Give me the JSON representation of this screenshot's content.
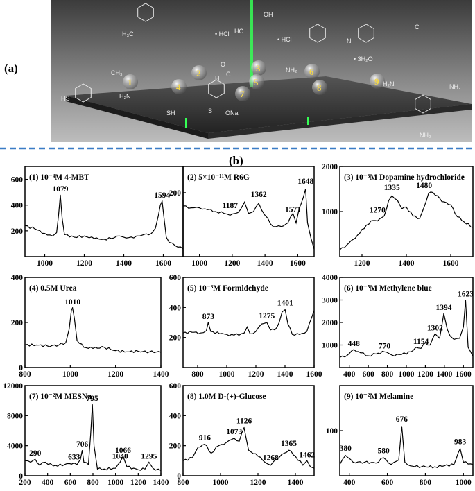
{
  "figure": {
    "label_a": "(a)",
    "label_b": "(b)",
    "divider_color": "#3a7cc6",
    "scene": {
      "molecule_numbers": [
        "1",
        "2",
        "3",
        "4",
        "5",
        "6",
        "7",
        "8",
        "9"
      ],
      "annotations": {
        "hcl_1": "• HCl",
        "hcl_2": "• HCl",
        "cl": "Cl",
        "cl_sup": "−",
        "water": "• 3H₂O",
        "ona": "ONa",
        "sh_1": "HS",
        "sh_2": "SH",
        "s": "S",
        "oh": "OH",
        "ho": "HO",
        "nh2_1": "NH₂",
        "nh2_2": "NH₂",
        "nh2_3": "NH₂",
        "h2n_1": "H₂N",
        "h2n_2": "H₂N",
        "h3c": "H₃C",
        "ch3": "CH₃",
        "o": "O",
        "h": "H",
        "c": "C",
        "n": "N"
      }
    }
  },
  "chart_data": [
    {
      "id": 1,
      "type": "line",
      "title": "(1) 10⁻⁴M 4-MBT",
      "xlim": [
        900,
        1700
      ],
      "ylim": [
        0,
        700
      ],
      "xticks": [
        1000,
        1200,
        1400,
        1600
      ],
      "yticks": [
        200,
        400,
        600
      ],
      "x": [
        900,
        950,
        1000,
        1040,
        1060,
        1070,
        1079,
        1088,
        1100,
        1150,
        1200,
        1250,
        1300,
        1350,
        1380,
        1400,
        1450,
        1480,
        1500,
        1540,
        1560,
        1575,
        1585,
        1594,
        1602,
        1615,
        1630,
        1660,
        1700
      ],
      "y": [
        240,
        215,
        180,
        160,
        185,
        320,
        480,
        300,
        170,
        150,
        160,
        140,
        135,
        145,
        160,
        150,
        145,
        160,
        170,
        180,
        220,
        320,
        400,
        430,
        320,
        150,
        110,
        85,
        60
      ],
      "peaks": [
        {
          "x": 1079,
          "y": 480,
          "label": "1079"
        },
        {
          "x": 1594,
          "y": 430,
          "label": "1594"
        }
      ]
    },
    {
      "id": 2,
      "type": "line",
      "title": "(2) 5×10⁻¹¹M R6G",
      "xlim": [
        900,
        1700
      ],
      "ylim": [
        30,
        270
      ],
      "xticks": [
        1000,
        1200,
        1400,
        1600
      ],
      "yticks": [
        200
      ],
      "x": [
        900,
        950,
        1000,
        1050,
        1100,
        1150,
        1187,
        1220,
        1250,
        1275,
        1300,
        1330,
        1362,
        1400,
        1450,
        1500,
        1540,
        1571,
        1590,
        1610,
        1620,
        1648,
        1660,
        1680,
        1700
      ],
      "y": [
        165,
        160,
        160,
        155,
        150,
        145,
        140,
        145,
        155,
        175,
        145,
        150,
        172,
        140,
        110,
        110,
        120,
        145,
        120,
        160,
        170,
        210,
        120,
        80,
        50
      ],
      "peaks": [
        {
          "x": 1187,
          "y": 150,
          "label": "1187"
        },
        {
          "x": 1362,
          "y": 180,
          "label": "1362"
        },
        {
          "x": 1571,
          "y": 140,
          "label": "1571"
        },
        {
          "x": 1648,
          "y": 215,
          "label": "1648"
        }
      ]
    },
    {
      "id": 3,
      "type": "line",
      "title": "(3) 10⁻³M Dopamine hydrochloride",
      "xlim": [
        1100,
        1700
      ],
      "ylim": [
        0,
        2000
      ],
      "xticks": [
        1200,
        1400,
        1600
      ],
      "yticks": [
        1000,
        2000
      ],
      "x": [
        1100,
        1130,
        1160,
        1190,
        1220,
        1250,
        1270,
        1300,
        1320,
        1335,
        1360,
        1380,
        1400,
        1430,
        1460,
        1480,
        1500,
        1520,
        1540,
        1560,
        1580,
        1600,
        1620,
        1650,
        1700
      ],
      "y": [
        150,
        250,
        380,
        520,
        700,
        800,
        790,
        900,
        1240,
        1350,
        1250,
        1060,
        1100,
        900,
        850,
        1100,
        1400,
        1420,
        1350,
        1220,
        1200,
        1150,
        950,
        800,
        650
      ],
      "peaks": [
        {
          "x": 1270,
          "y": 900,
          "label": "1270"
        },
        {
          "x": 1335,
          "y": 1400,
          "label": "1335"
        },
        {
          "x": 1480,
          "y": 1450,
          "label": "1480"
        }
      ]
    },
    {
      "id": 4,
      "type": "line",
      "title": "(4) 0.5M Urea",
      "xlim": [
        800,
        1400
      ],
      "ylim": [
        0,
        400
      ],
      "xticks": [
        800,
        1000,
        1200,
        1400
      ],
      "yticks": [
        0,
        200,
        400
      ],
      "x": [
        800,
        850,
        900,
        950,
        980,
        995,
        1005,
        1010,
        1018,
        1030,
        1060,
        1100,
        1150,
        1200,
        1250,
        1300,
        1350,
        1400
      ],
      "y": [
        100,
        100,
        95,
        100,
        110,
        170,
        255,
        265,
        220,
        120,
        90,
        85,
        90,
        75,
        70,
        72,
        70,
        68
      ],
      "peaks": [
        {
          "x": 1010,
          "y": 265,
          "label": "1010"
        }
      ]
    },
    {
      "id": 5,
      "type": "line",
      "title": "(5) 10⁻³M Formldehyde",
      "xlim": [
        700,
        1600
      ],
      "ylim": [
        0,
        600
      ],
      "xticks": [
        800,
        1000,
        1200,
        1400,
        1600
      ],
      "yticks": [
        200,
        400,
        600
      ],
      "x": [
        700,
        760,
        820,
        860,
        873,
        890,
        950,
        1000,
        1050,
        1100,
        1120,
        1140,
        1160,
        1200,
        1240,
        1275,
        1300,
        1330,
        1360,
        1380,
        1401,
        1420,
        1450,
        1500,
        1550,
        1600
      ],
      "y": [
        230,
        235,
        230,
        245,
        300,
        240,
        225,
        220,
        215,
        225,
        230,
        270,
        225,
        240,
        290,
        300,
        250,
        250,
        300,
        370,
        385,
        290,
        220,
        220,
        240,
        380
      ],
      "peaks": [
        {
          "x": 873,
          "y": 300,
          "label": "873"
        },
        {
          "x": 1275,
          "y": 305,
          "label": "1275"
        },
        {
          "x": 1401,
          "y": 390,
          "label": "1401"
        }
      ]
    },
    {
      "id": 6,
      "type": "line",
      "title": "(6) 10⁻⁵M Methylene blue",
      "xlim": [
        300,
        1700
      ],
      "ylim": [
        0,
        4000
      ],
      "xticks": [
        400,
        600,
        800,
        1000,
        1200,
        1400,
        1600
      ],
      "yticks": [
        1000,
        2000,
        3000,
        4000
      ],
      "x": [
        300,
        380,
        448,
        520,
        600,
        680,
        770,
        850,
        950,
        1050,
        1100,
        1154,
        1200,
        1250,
        1302,
        1350,
        1394,
        1430,
        1460,
        1500,
        1560,
        1600,
        1623,
        1650,
        1700
      ],
      "y": [
        450,
        550,
        800,
        650,
        520,
        600,
        700,
        550,
        580,
        700,
        900,
        850,
        1100,
        1000,
        1500,
        1300,
        2400,
        1700,
        1400,
        1250,
        1300,
        1800,
        3000,
        900,
        500
      ],
      "peaks": [
        {
          "x": 448,
          "y": 800,
          "label": "448"
        },
        {
          "x": 770,
          "y": 700,
          "label": "770"
        },
        {
          "x": 1154,
          "y": 900,
          "label": "1154"
        },
        {
          "x": 1302,
          "y": 1500,
          "label": "1302"
        },
        {
          "x": 1394,
          "y": 2400,
          "label": "1394"
        },
        {
          "x": 1623,
          "y": 3000,
          "label": "1623"
        }
      ]
    },
    {
      "id": 7,
      "type": "line",
      "title": "(7) 10⁻²M MESNa",
      "xlim": [
        200,
        1400
      ],
      "ylim": [
        0,
        12000
      ],
      "xticks": [
        200,
        400,
        600,
        800,
        1000,
        1200,
        1400
      ],
      "yticks": [
        0,
        4000,
        8000,
        12000
      ],
      "x": [
        200,
        250,
        290,
        330,
        380,
        450,
        550,
        633,
        660,
        690,
        706,
        720,
        760,
        780,
        795,
        810,
        840,
        900,
        1000,
        1040,
        1066,
        1100,
        1200,
        1260,
        1295,
        1330,
        1400
      ],
      "y": [
        2000,
        1800,
        2200,
        1400,
        1800,
        1300,
        1500,
        1700,
        1500,
        2200,
        3400,
        1800,
        1500,
        5500,
        9500,
        4000,
        900,
        900,
        1000,
        1800,
        2600,
        1200,
        800,
        900,
        1800,
        1000,
        700
      ],
      "peaks": [
        {
          "x": 290,
          "y": 2200,
          "label": "290"
        },
        {
          "x": 633,
          "y": 1700,
          "label": "633"
        },
        {
          "x": 706,
          "y": 3400,
          "label": "706"
        },
        {
          "x": 795,
          "y": 9500,
          "label": "795"
        },
        {
          "x": 1040,
          "y": 1800,
          "label": "1040"
        },
        {
          "x": 1066,
          "y": 2600,
          "label": "1066"
        },
        {
          "x": 1295,
          "y": 1800,
          "label": "1295"
        }
      ]
    },
    {
      "id": 8,
      "type": "line",
      "title": "(8) 1.0M D-(+)-Glucose",
      "xlim": [
        800,
        1500
      ],
      "ylim": [
        0,
        600
      ],
      "xticks": [
        800,
        1000,
        1200,
        1400
      ],
      "yticks": [
        0,
        200,
        400,
        600
      ],
      "x": [
        800,
        850,
        880,
        916,
        950,
        990,
        1030,
        1073,
        1100,
        1126,
        1150,
        1200,
        1250,
        1268,
        1300,
        1340,
        1365,
        1400,
        1440,
        1462,
        1480,
        1500
      ],
      "y": [
        100,
        120,
        190,
        210,
        150,
        200,
        220,
        250,
        230,
        320,
        170,
        130,
        80,
        70,
        110,
        150,
        170,
        130,
        70,
        100,
        60,
        50
      ],
      "peaks": [
        {
          "x": 916,
          "y": 215,
          "label": "916"
        },
        {
          "x": 1073,
          "y": 255,
          "label": "1073"
        },
        {
          "x": 1126,
          "y": 325,
          "label": "1126"
        },
        {
          "x": 1268,
          "y": 80,
          "label": "1268"
        },
        {
          "x": 1365,
          "y": 175,
          "label": "1365"
        },
        {
          "x": 1462,
          "y": 100,
          "label": "1462"
        }
      ]
    },
    {
      "id": 9,
      "type": "line",
      "title": "(9) 10⁻²M Melamine",
      "xlim": [
        350,
        1050
      ],
      "ylim": [
        0,
        200
      ],
      "xticks": [
        400,
        600,
        800,
        1000
      ],
      "yticks": [
        100
      ],
      "x": [
        350,
        380,
        420,
        480,
        540,
        580,
        620,
        660,
        676,
        692,
        720,
        780,
        850,
        900,
        950,
        983,
        1000,
        1050
      ],
      "y": [
        25,
        45,
        30,
        30,
        28,
        40,
        25,
        35,
        110,
        30,
        22,
        20,
        20,
        22,
        25,
        60,
        30,
        25
      ],
      "peaks": [
        {
          "x": 380,
          "y": 48,
          "label": "380"
        },
        {
          "x": 580,
          "y": 42,
          "label": "580"
        },
        {
          "x": 676,
          "y": 112,
          "label": "676"
        },
        {
          "x": 983,
          "y": 62,
          "label": "983"
        }
      ]
    }
  ]
}
